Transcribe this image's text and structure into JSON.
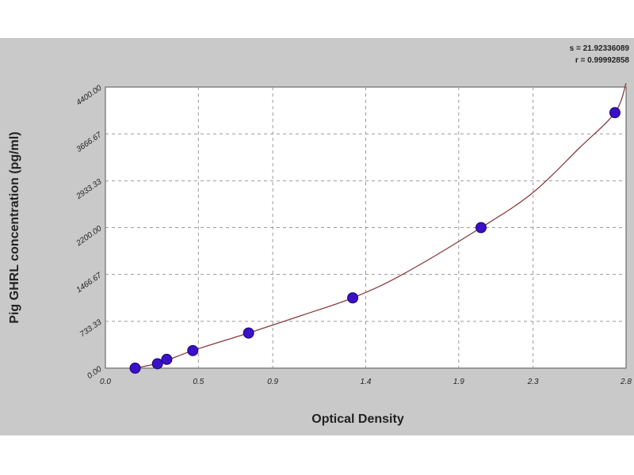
{
  "stats": {
    "s_label": "s = 21.92336089",
    "r_label": "r = 0.99992858"
  },
  "chart_data": {
    "type": "scatter",
    "xlabel": "Optical Density",
    "ylabel": "Pig GHRL concentration (pg/ml)",
    "xlim": [
      0,
      2.8
    ],
    "ylim": [
      0,
      4400
    ],
    "x_ticks": [
      0.0,
      0.5,
      0.9,
      1.4,
      1.9,
      2.3,
      2.8
    ],
    "x_tick_labels": [
      "0.0",
      "0.5",
      "0.9",
      "1.4",
      "1.9",
      "2.3",
      "2.8"
    ],
    "y_ticks": [
      0,
      733.33,
      1466.67,
      2200,
      2933.33,
      3666.67,
      4400
    ],
    "y_tick_labels": [
      "0.00",
      "733.33",
      "1466.67",
      "2200.00",
      "2933.33",
      "3666.67",
      "4400.00"
    ],
    "grid": true,
    "series": [
      {
        "points": [
          {
            "x": 0.16,
            "y": 0
          },
          {
            "x": 0.28,
            "y": 68.75
          },
          {
            "x": 0.33,
            "y": 137.5
          },
          {
            "x": 0.47,
            "y": 275
          },
          {
            "x": 0.77,
            "y": 550
          },
          {
            "x": 1.33,
            "y": 1100
          },
          {
            "x": 2.02,
            "y": 2200
          },
          {
            "x": 2.74,
            "y": 4000
          }
        ],
        "fit": [
          {
            "x": 0.16,
            "y": 0
          },
          {
            "x": 0.3,
            "y": 90
          },
          {
            "x": 0.47,
            "y": 275
          },
          {
            "x": 0.77,
            "y": 550
          },
          {
            "x": 1.05,
            "y": 820
          },
          {
            "x": 1.33,
            "y": 1100
          },
          {
            "x": 1.6,
            "y": 1470
          },
          {
            "x": 2.02,
            "y": 2200
          },
          {
            "x": 2.3,
            "y": 2750
          },
          {
            "x": 2.55,
            "y": 3450
          },
          {
            "x": 2.74,
            "y": 4000
          },
          {
            "x": 2.8,
            "y": 4460
          }
        ]
      }
    ],
    "colors": {
      "panel": "#c9c9c9",
      "plot_bg": "#ffffff",
      "grid": "#9a9a9a",
      "curve": "#8b3a3a",
      "marker": "#3a10c8",
      "marker_edge": "#1a0670"
    }
  }
}
